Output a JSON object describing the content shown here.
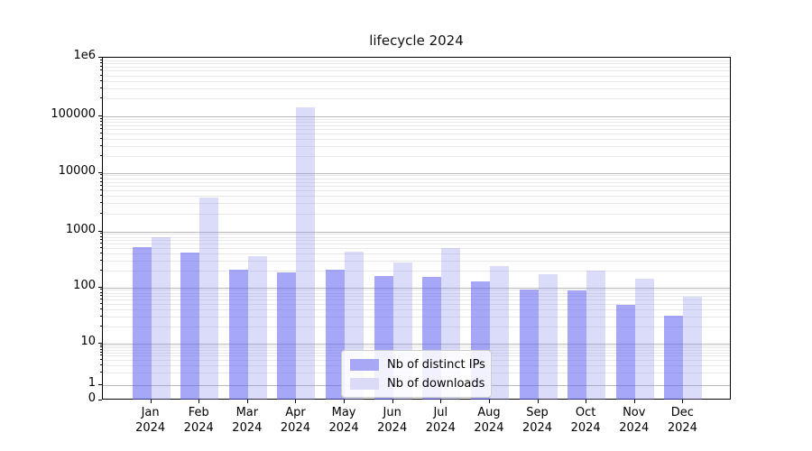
{
  "title": "lifecycle 2024",
  "chart_data": {
    "type": "bar",
    "title": "lifecycle 2024",
    "xlabel": "",
    "ylabel": "",
    "yscale": "symlog",
    "ylim": [
      0,
      1000000
    ],
    "grid": "horizontal major and minor log gridlines",
    "legend_position": "lower center inside plot",
    "categories": [
      "Jan",
      "Feb",
      "Mar",
      "Apr",
      "May",
      "Jun",
      "Jul",
      "Aug",
      "Sep",
      "Oct",
      "Nov",
      "Dec"
    ],
    "year_label": "2024",
    "yticks": [
      {
        "value": 0,
        "label": "0"
      },
      {
        "value": 1,
        "label": "1"
      },
      {
        "value": 10,
        "label": "10"
      },
      {
        "value": 100,
        "label": "100"
      },
      {
        "value": 1000,
        "label": "1000"
      },
      {
        "value": 10000,
        "label": "10000"
      },
      {
        "value": 100000,
        "label": "100000"
      },
      {
        "value": 1000000,
        "label": "1e6"
      }
    ],
    "series": [
      {
        "name": "Nb of distinct IPs",
        "legend_color": "#a7a7f5",
        "fill": "rgba(95,95,240,0.55)",
        "values": [
          515,
          415,
          210,
          185,
          210,
          158,
          152,
          125,
          92,
          87,
          48,
          31
        ]
      },
      {
        "name": "Nb of downloads",
        "legend_color": "#dbdbf8",
        "fill": "rgba(135,135,240,0.30)",
        "values": [
          785,
          3800,
          365,
          145000,
          430,
          280,
          500,
          235,
          170,
          200,
          140,
          68
        ]
      }
    ]
  }
}
